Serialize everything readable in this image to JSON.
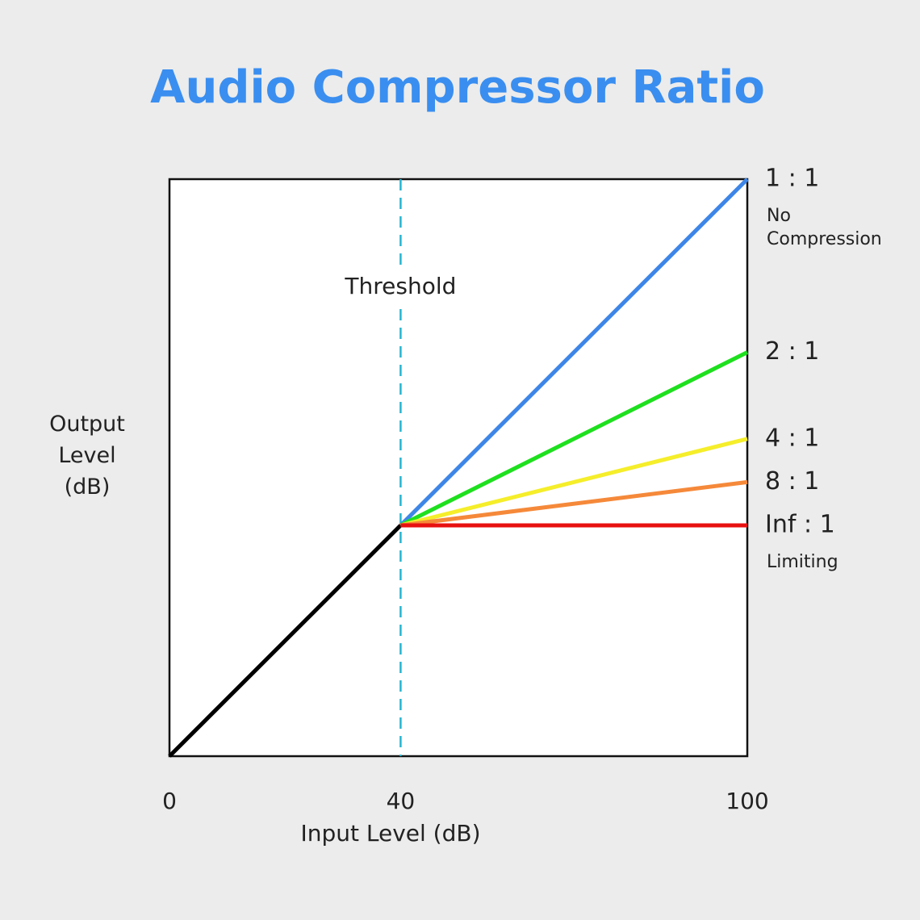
{
  "chart_data": {
    "type": "line",
    "title": "Audio Compressor Ratio",
    "x_label": "Input Level (dB)",
    "y_label": "Output Level (dB)",
    "x": [
      0,
      40,
      100
    ],
    "xlim": [
      0,
      100
    ],
    "xticks": [
      0,
      40,
      100
    ],
    "ylim": [
      0,
      100
    ],
    "annotation": {
      "x": 40,
      "label": "Threshold",
      "color": "#26b5d0"
    },
    "series": [
      {
        "color": "#000000",
        "values": [
          0,
          40,
          null
        ]
      },
      {
        "name": "1 : 1",
        "note": "No Compression",
        "color": "#3d86e8",
        "values": [
          null,
          40,
          100
        ]
      },
      {
        "name": "2 : 1",
        "color": "#1ee01e",
        "values": [
          null,
          40,
          70
        ]
      },
      {
        "name": "4 : 1",
        "color": "#f5ee2a",
        "values": [
          null,
          40,
          55
        ]
      },
      {
        "name": "8 : 1",
        "color": "#f5893a",
        "values": [
          null,
          40,
          47.5
        ]
      },
      {
        "name": "Inf : 1",
        "note": "Limiting",
        "color": "#e81010",
        "values": [
          null,
          40,
          40
        ]
      }
    ]
  }
}
